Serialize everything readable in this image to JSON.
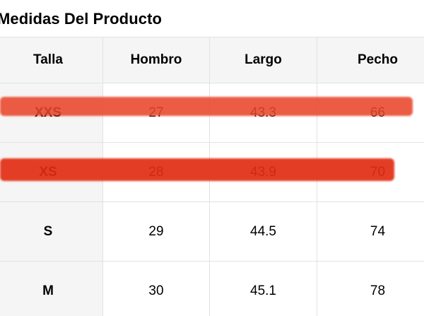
{
  "title": "Medidas Del Producto",
  "table": {
    "headers": [
      "Talla",
      "Hombro",
      "Largo",
      "Pecho"
    ],
    "rows": [
      {
        "size": "XXS",
        "shoulder": "27",
        "length": "43.3",
        "chest": "66"
      },
      {
        "size": "XS",
        "shoulder": "28",
        "length": "43.9",
        "chest": "70"
      },
      {
        "size": "S",
        "shoulder": "29",
        "length": "44.5",
        "chest": "74"
      },
      {
        "size": "M",
        "shoulder": "30",
        "length": "45.1",
        "chest": "78"
      }
    ]
  },
  "colors": {
    "highlight_1": "#e9452a",
    "highlight_2": "#e22c12",
    "header_bg": "#f5f5f5",
    "border": "#e2e2e2"
  }
}
